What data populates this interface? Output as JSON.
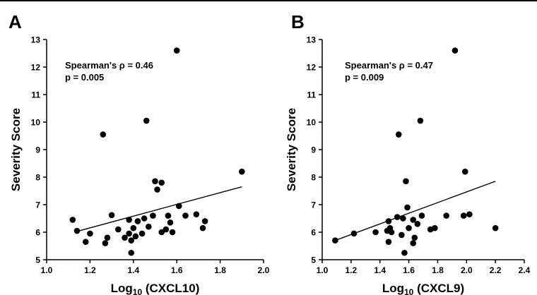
{
  "chart_data": [
    {
      "type": "scatter",
      "panel_label": "A",
      "xlabel_main": "Log",
      "xlabel_sub": "10",
      "xlabel_rest": " (CXCL10)",
      "ylabel": "Severity Score",
      "xlim": [
        1.0,
        2.0
      ],
      "ylim": [
        5,
        13
      ],
      "xticks": [
        "1.0",
        "1.2",
        "1.4",
        "1.6",
        "1.8",
        "2.0"
      ],
      "yticks": [
        "5",
        "6",
        "7",
        "8",
        "9",
        "10",
        "11",
        "12",
        "13"
      ],
      "annotation": [
        "Spearman's ρ  = 0.46",
        "p = 0.005"
      ],
      "points": [
        {
          "x": 1.12,
          "y": 6.45
        },
        {
          "x": 1.14,
          "y": 6.05
        },
        {
          "x": 1.18,
          "y": 5.65
        },
        {
          "x": 1.2,
          "y": 5.95
        },
        {
          "x": 1.26,
          "y": 9.55
        },
        {
          "x": 1.27,
          "y": 5.6
        },
        {
          "x": 1.28,
          "y": 5.8
        },
        {
          "x": 1.3,
          "y": 6.62
        },
        {
          "x": 1.33,
          "y": 6.1
        },
        {
          "x": 1.36,
          "y": 5.8
        },
        {
          "x": 1.38,
          "y": 6.45
        },
        {
          "x": 1.38,
          "y": 5.95
        },
        {
          "x": 1.39,
          "y": 5.7
        },
        {
          "x": 1.39,
          "y": 5.25
        },
        {
          "x": 1.4,
          "y": 6.15
        },
        {
          "x": 1.41,
          "y": 5.85
        },
        {
          "x": 1.42,
          "y": 6.4
        },
        {
          "x": 1.44,
          "y": 5.95
        },
        {
          "x": 1.45,
          "y": 6.5
        },
        {
          "x": 1.46,
          "y": 10.05
        },
        {
          "x": 1.47,
          "y": 6.2
        },
        {
          "x": 1.49,
          "y": 6.6
        },
        {
          "x": 1.5,
          "y": 7.85
        },
        {
          "x": 1.51,
          "y": 7.55
        },
        {
          "x": 1.53,
          "y": 7.8
        },
        {
          "x": 1.53,
          "y": 6.0
        },
        {
          "x": 1.55,
          "y": 6.1
        },
        {
          "x": 1.56,
          "y": 6.6
        },
        {
          "x": 1.57,
          "y": 6.35
        },
        {
          "x": 1.58,
          "y": 6.0
        },
        {
          "x": 1.6,
          "y": 12.6
        },
        {
          "x": 1.61,
          "y": 6.95
        },
        {
          "x": 1.64,
          "y": 6.6
        },
        {
          "x": 1.69,
          "y": 6.65
        },
        {
          "x": 1.72,
          "y": 6.15
        },
        {
          "x": 1.73,
          "y": 6.4
        },
        {
          "x": 1.9,
          "y": 8.2
        }
      ],
      "trendline": {
        "x": [
          1.15,
          1.9
        ],
        "y": [
          6.05,
          7.65
        ]
      }
    },
    {
      "type": "scatter",
      "panel_label": "B",
      "xlabel_main": "Log",
      "xlabel_sub": "10",
      "xlabel_rest": " (CXCL9)",
      "ylabel": "Severity Score",
      "xlim": [
        1.0,
        2.4
      ],
      "ylim": [
        5,
        13
      ],
      "xticks": [
        "1.0",
        "1.2",
        "1.4",
        "1.6",
        "1.8",
        "2.0",
        "2.2",
        "2.4"
      ],
      "yticks": [
        "5",
        "6",
        "7",
        "8",
        "9",
        "10",
        "11",
        "12",
        "13"
      ],
      "annotation": [
        "Spearman's ρ  = 0.47",
        "p = 0.009"
      ],
      "points": [
        {
          "x": 1.09,
          "y": 5.7
        },
        {
          "x": 1.22,
          "y": 5.95
        },
        {
          "x": 1.37,
          "y": 6.0
        },
        {
          "x": 1.45,
          "y": 6.05
        },
        {
          "x": 1.46,
          "y": 6.4
        },
        {
          "x": 1.46,
          "y": 5.65
        },
        {
          "x": 1.47,
          "y": 6.15
        },
        {
          "x": 1.48,
          "y": 6.0
        },
        {
          "x": 1.52,
          "y": 6.55
        },
        {
          "x": 1.53,
          "y": 9.55
        },
        {
          "x": 1.55,
          "y": 5.9
        },
        {
          "x": 1.56,
          "y": 6.5
        },
        {
          "x": 1.57,
          "y": 5.25
        },
        {
          "x": 1.58,
          "y": 7.85
        },
        {
          "x": 1.59,
          "y": 6.9
        },
        {
          "x": 1.6,
          "y": 6.15
        },
        {
          "x": 1.63,
          "y": 6.45
        },
        {
          "x": 1.63,
          "y": 5.6
        },
        {
          "x": 1.64,
          "y": 5.8
        },
        {
          "x": 1.66,
          "y": 6.3
        },
        {
          "x": 1.68,
          "y": 10.05
        },
        {
          "x": 1.69,
          "y": 6.6
        },
        {
          "x": 1.75,
          "y": 6.1
        },
        {
          "x": 1.78,
          "y": 6.15
        },
        {
          "x": 1.86,
          "y": 6.6
        },
        {
          "x": 1.92,
          "y": 12.6
        },
        {
          "x": 1.98,
          "y": 6.6
        },
        {
          "x": 1.99,
          "y": 8.2
        },
        {
          "x": 2.02,
          "y": 6.65
        },
        {
          "x": 2.2,
          "y": 6.15
        }
      ],
      "trendline": {
        "x": [
          1.09,
          2.2
        ],
        "y": [
          5.7,
          7.85
        ]
      }
    }
  ]
}
